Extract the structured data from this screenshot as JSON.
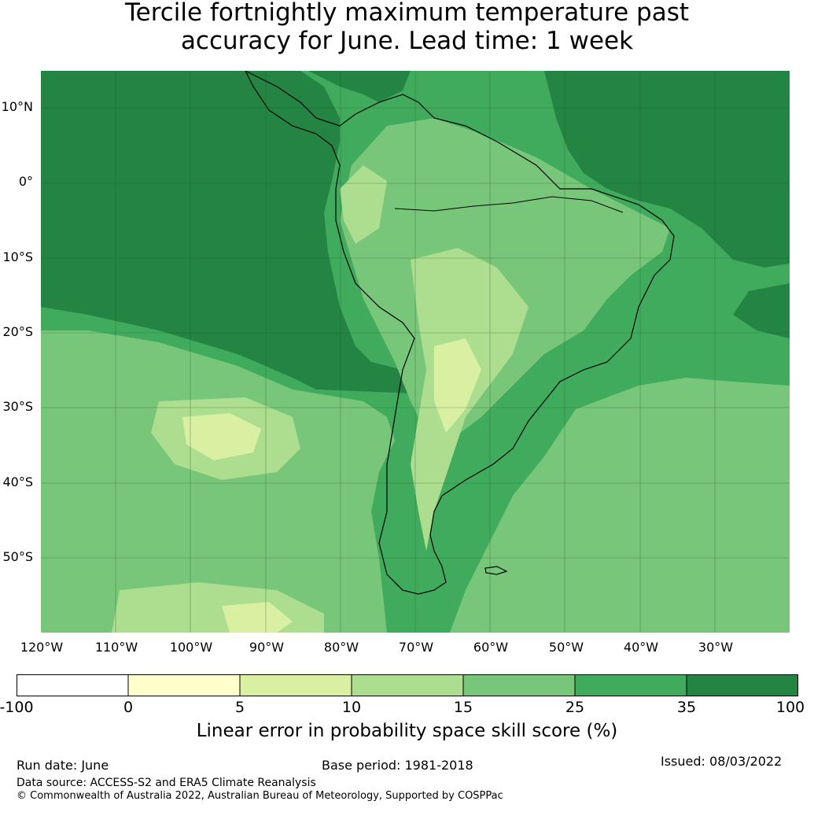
{
  "title": {
    "line1": "Tercile fortnightly maximum temperature past",
    "line2": "accuracy for June. Lead time: 1 week"
  },
  "map": {
    "lat_labels": [
      "10°N",
      "0°",
      "10°S",
      "20°S",
      "30°S",
      "40°S",
      "50°S"
    ],
    "lon_labels": [
      "120°W",
      "110°W",
      "100°W",
      "90°W",
      "80°W",
      "70°W",
      "60°W",
      "50°W",
      "40°W",
      "30°W"
    ],
    "extent": {
      "lon": [
        -120,
        -20
      ],
      "lat": [
        -60,
        15
      ]
    },
    "gridlines": true
  },
  "colorbar": {
    "ticks": [
      "-100",
      "0",
      "5",
      "10",
      "15",
      "25",
      "35",
      "100"
    ],
    "colors": [
      "#ffffff",
      "#ffffcc",
      "#d9f0a3",
      "#addd8e",
      "#78c679",
      "#41ab5d",
      "#238443"
    ],
    "label": "Linear error in probability space skill score (%)"
  },
  "footer": {
    "run_date": "Run date: June",
    "base_period": "Base period: 1981-2018",
    "issued": "Issued: 08/03/2022",
    "data_source": "Data source: ACCESS-S2 and ERA5 Climate Reanalysis",
    "copyright": "© Commonwealth of Australia 2022, Australian Bureau of Meteorology, Supported by COSPPac"
  }
}
